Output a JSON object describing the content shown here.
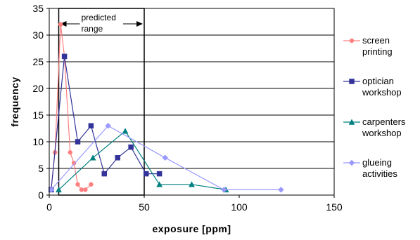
{
  "chart_data": {
    "type": "line",
    "xlabel": "exposure [ppm]",
    "ylabel": "frequency",
    "xlim": [
      0,
      150
    ],
    "ylim": [
      0,
      35
    ],
    "x_ticks": [
      0,
      50,
      100,
      150
    ],
    "y_ticks": [
      0,
      5,
      10,
      15,
      20,
      25,
      30,
      35
    ],
    "grid": "horizontal",
    "legend_position": "right",
    "annotation": {
      "text_lines": [
        "predicted",
        "range"
      ],
      "x_start": 5,
      "x_end": 50
    },
    "series": [
      {
        "name_lines": [
          "screen",
          "printing"
        ],
        "color": "#ff8080",
        "marker": "circle",
        "points": [
          [
            1,
            1
          ],
          [
            3,
            8
          ],
          [
            6,
            32
          ],
          [
            8,
            26
          ],
          [
            11,
            8
          ],
          [
            13,
            6
          ],
          [
            15,
            2
          ],
          [
            17,
            1
          ],
          [
            19,
            1
          ],
          [
            22,
            2
          ]
        ]
      },
      {
        "name_lines": [
          "optician",
          "workshop"
        ],
        "color": "#333399",
        "marker": "square",
        "points": [
          [
            1,
            1
          ],
          [
            8,
            26
          ],
          [
            15,
            10
          ],
          [
            22,
            13
          ],
          [
            29,
            4
          ],
          [
            36,
            7
          ],
          [
            43,
            9
          ],
          [
            51,
            4
          ],
          [
            58,
            4
          ]
        ]
      },
      {
        "name_lines": [
          "carpenters",
          "workshop"
        ],
        "color": "#008080",
        "marker": "triangle",
        "points": [
          [
            5,
            1
          ],
          [
            23,
            7
          ],
          [
            40,
            12
          ],
          [
            58,
            2
          ],
          [
            75,
            2
          ],
          [
            93,
            1
          ]
        ]
      },
      {
        "name_lines": [
          "glueing",
          "activities"
        ],
        "color": "#9999ff",
        "marker": "diamond",
        "points": [
          [
            1,
            1
          ],
          [
            31,
            13
          ],
          [
            61,
            7
          ],
          [
            92,
            1
          ],
          [
            122,
            1
          ]
        ]
      }
    ]
  }
}
